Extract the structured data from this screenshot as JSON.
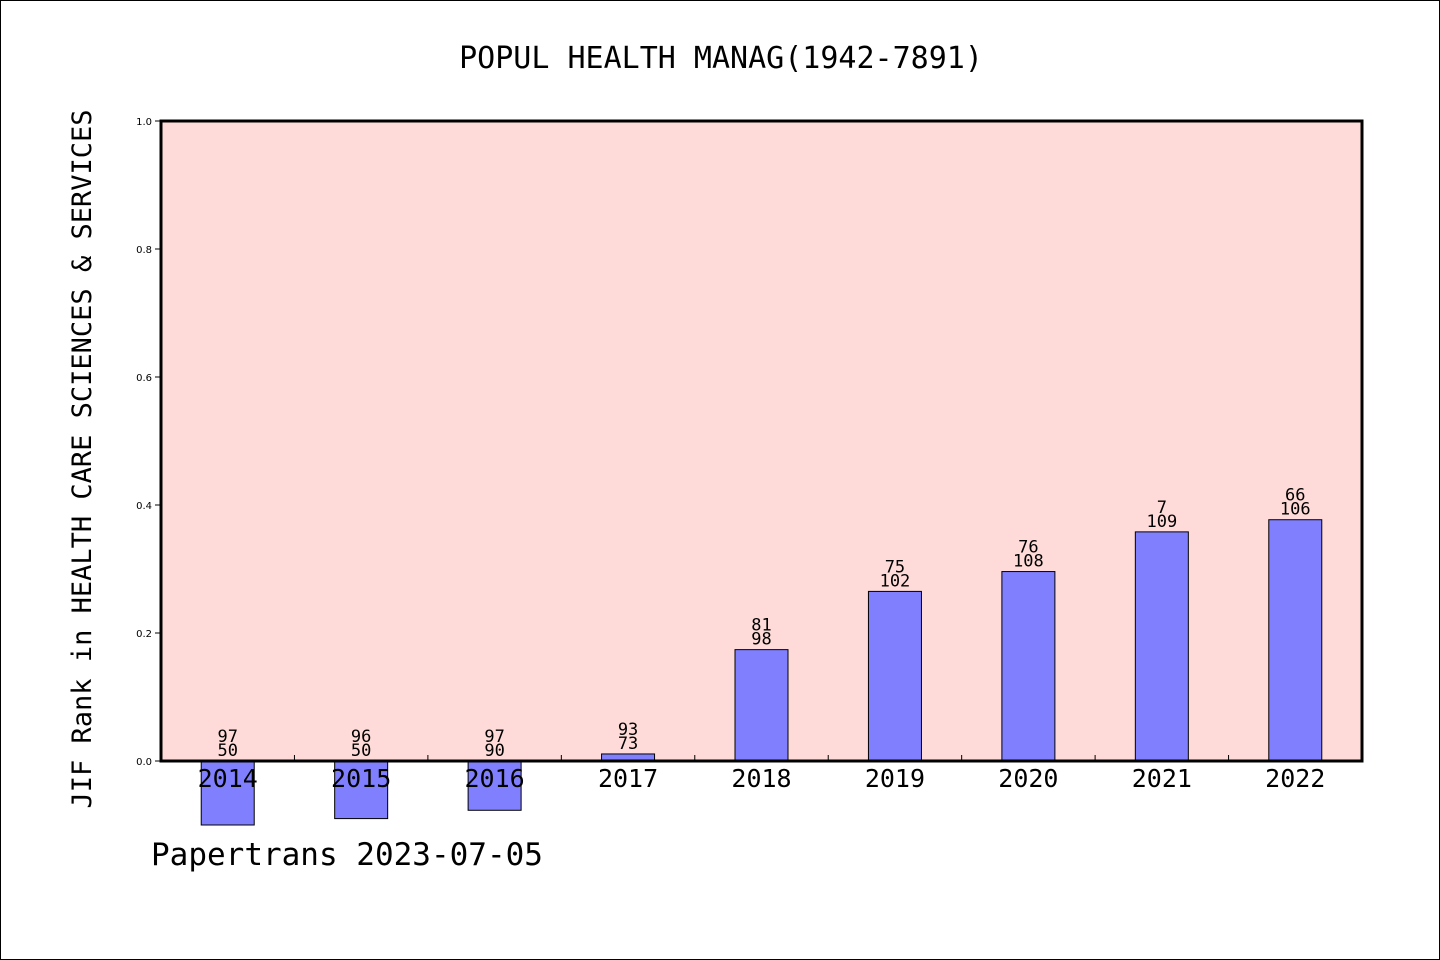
{
  "chart_data": {
    "type": "bar",
    "title": "POPUL HEALTH MANAG(1942-7891)",
    "ylabel": "JIF Rank in HEALTH CARE SCIENCES & SERVICES",
    "xlabel": "",
    "categories": [
      "2014",
      "2015",
      "2016",
      "2017",
      "2018",
      "2019",
      "2020",
      "2021",
      "2022"
    ],
    "values": [
      -0.1,
      -0.09,
      -0.077,
      0.011,
      0.174,
      0.265,
      0.296,
      0.358,
      0.377
    ],
    "annotations_top": [
      "97",
      "96",
      "97",
      "93",
      "81",
      "75",
      "76",
      "7",
      "66"
    ],
    "annotations_bottom": [
      "50",
      "50",
      "90",
      "73",
      "98",
      "102",
      "108",
      "109",
      "106"
    ],
    "ylim": [
      0,
      1.0
    ],
    "yticks": [
      "0.0",
      "0.2",
      "0.4",
      "0.6",
      "0.8",
      "1.0"
    ],
    "grid": false,
    "colors": {
      "plot_background": "#fedbd8",
      "bar": "#8080ff",
      "bar_edge": "#000000"
    }
  },
  "footer": {
    "text": "Papertrans 2023-07-05"
  }
}
